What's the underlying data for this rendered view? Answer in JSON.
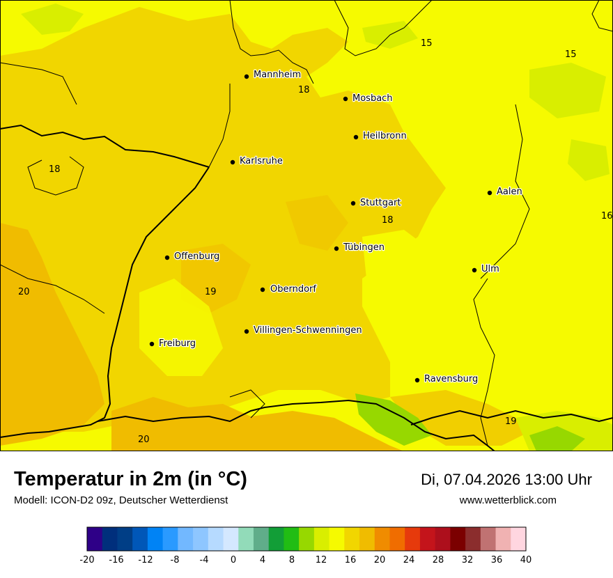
{
  "title": "Temperatur in 2m (in °C)",
  "model": "Modell: ICON-D2 09z, Deutscher Wetterdienst",
  "datetime": "Di, 07.04.2026 13:00 Uhr",
  "website": "www.wetterblick.com",
  "cities": [
    {
      "name": "Mannheim"
    },
    {
      "name": "Mosbach"
    },
    {
      "name": "Heilbronn"
    },
    {
      "name": "Karlsruhe"
    },
    {
      "name": "Aalen"
    },
    {
      "name": "Stuttgart"
    },
    {
      "name": "Tübingen"
    },
    {
      "name": "Ulm"
    },
    {
      "name": "Offenburg"
    },
    {
      "name": "Oberndorf"
    },
    {
      "name": "Villingen-Schwenningen"
    },
    {
      "name": "Freiburg"
    },
    {
      "name": "Ravensburg"
    }
  ],
  "isoline_labels": [
    "15",
    "15",
    "18",
    "18",
    "18",
    "16",
    "20",
    "19",
    "20",
    "19"
  ],
  "legend": {
    "ticks": [
      "-20",
      "-16",
      "-12",
      "-8",
      "-4",
      "0",
      "4",
      "8",
      "12",
      "16",
      "20",
      "24",
      "28",
      "32",
      "36",
      "40"
    ],
    "colors": [
      "#2e0087",
      "#002f7c",
      "#003e86",
      "#0057b8",
      "#0083f5",
      "#2a9aff",
      "#72b8ff",
      "#8ec6ff",
      "#b6daff",
      "#d4e8ff",
      "#92dbb9",
      "#60ad8a",
      "#129e37",
      "#21bd14",
      "#97d800",
      "#d9ee00",
      "#f6fa00",
      "#f1d600",
      "#f0bc00",
      "#f08c00",
      "#f06d00",
      "#e63a0c",
      "#c4141b",
      "#ad0f1c",
      "#7b0000",
      "#8b2d2d",
      "#c07272",
      "#f0b2b2",
      "#ffd6e0"
    ]
  },
  "colors": {
    "warm_field": "#f1d600",
    "mid_field": "#f0bc00",
    "cool_field": "#f6fa00",
    "green_patch": "#d9ee00",
    "deep_green": "#97d800"
  }
}
